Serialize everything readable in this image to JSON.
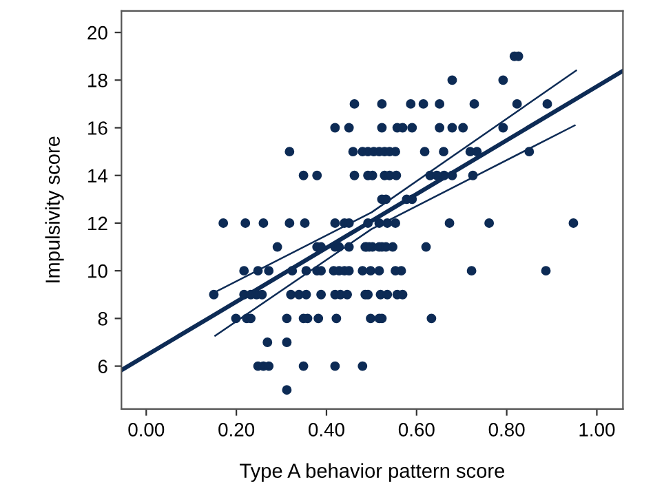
{
  "chart_data": {
    "type": "scatter",
    "xlabel": "Type A behavior pattern score",
    "ylabel": "Impulsivity score",
    "xlim": [
      -0.055,
      1.058
    ],
    "ylim": [
      4.2,
      20.9
    ],
    "xticks": [
      {
        "value": 0,
        "label": "0.00"
      },
      {
        "value": 0.2,
        "label": "0.20"
      },
      {
        "value": 0.4,
        "label": "0.40"
      },
      {
        "value": 0.6,
        "label": "0.60"
      },
      {
        "value": 0.8,
        "label": "0.80"
      },
      {
        "value": 1,
        "label": "1.00"
      }
    ],
    "yticks": [
      6,
      8,
      10,
      12,
      14,
      16,
      18,
      20
    ],
    "grid": false,
    "series": [
      {
        "marker": "circle",
        "color": "#0d2b55",
        "x": [
          0.817,
          0.826,
          0.679,
          0.792,
          0.462,
          0.523,
          0.587,
          0.615,
          0.651,
          0.728,
          0.823,
          0.89,
          0.419,
          0.45,
          0.523,
          0.557,
          0.569,
          0.59,
          0.651,
          0.679,
          0.703,
          0.792,
          0.318,
          0.459,
          0.48,
          0.492,
          0.505,
          0.517,
          0.529,
          0.54,
          0.553,
          0.618,
          0.66,
          0.719,
          0.734,
          0.85,
          0.349,
          0.379,
          0.462,
          0.492,
          0.502,
          0.529,
          0.54,
          0.555,
          0.63,
          0.645,
          0.661,
          0.679,
          0.725,
          0.523,
          0.532,
          0.578,
          0.59,
          0.171,
          0.22,
          0.26,
          0.318,
          0.352,
          0.419,
          0.44,
          0.45,
          0.492,
          0.517,
          0.535,
          0.553,
          0.673,
          0.761,
          0.948,
          0.291,
          0.379,
          0.388,
          0.419,
          0.428,
          0.45,
          0.489,
          0.502,
          0.523,
          0.486,
          0.495,
          0.517,
          0.532,
          0.547,
          0.621,
          0.217,
          0.248,
          0.272,
          0.324,
          0.355,
          0.379,
          0.388,
          0.416,
          0.428,
          0.44,
          0.45,
          0.48,
          0.498,
          0.517,
          0.553,
          0.566,
          0.722,
          0.887,
          0.15,
          0.217,
          0.232,
          0.245,
          0.257,
          0.321,
          0.339,
          0.355,
          0.388,
          0.419,
          0.431,
          0.446,
          0.492,
          0.52,
          0.486,
          0.535,
          0.557,
          0.569,
          0.199,
          0.223,
          0.232,
          0.312,
          0.349,
          0.358,
          0.382,
          0.422,
          0.498,
          0.517,
          0.523,
          0.633,
          0.269,
          0.312,
          0.248,
          0.26,
          0.272,
          0.349,
          0.419,
          0.48,
          0.312
        ],
        "values": [
          19,
          19,
          18,
          18,
          17,
          17,
          17,
          17,
          17,
          17,
          17,
          17,
          16,
          16,
          16,
          16,
          16,
          16,
          16,
          16,
          16,
          16,
          15,
          15,
          15,
          15,
          15,
          15,
          15,
          15,
          15,
          15,
          15,
          15,
          15,
          15,
          14,
          14,
          14,
          14,
          14,
          14,
          14,
          14,
          14,
          14,
          14,
          14,
          14,
          13,
          13,
          13,
          13,
          12,
          12,
          12,
          12,
          12,
          12,
          12,
          12,
          12,
          12,
          12,
          12,
          12,
          12,
          12,
          11,
          11,
          11,
          11,
          11,
          11,
          11,
          11,
          11,
          11,
          11,
          11,
          11,
          11,
          11,
          10,
          10,
          10,
          10,
          10,
          10,
          10,
          10,
          10,
          10,
          10,
          10,
          10,
          10,
          10,
          10,
          10,
          10,
          9,
          9,
          9,
          9,
          9,
          9,
          9,
          9,
          9,
          9,
          9,
          9,
          9,
          9,
          9,
          9,
          9,
          9,
          8,
          8,
          8,
          8,
          8,
          8,
          8,
          8,
          8,
          8,
          8,
          8,
          7,
          7,
          6,
          6,
          6,
          6,
          6,
          6,
          5
        ]
      },
      {
        "type": "line",
        "marker": "none",
        "color": "#0d2b55",
        "x": [
          -0.055,
          0.15,
          0.5,
          0.95,
          1.058
        ],
        "values": [
          5.83,
          8.14,
          12.09,
          17.17,
          18.39
        ]
      },
      {
        "type": "line",
        "marker": "none",
        "line_style": "solid",
        "color": "#0d2b55",
        "x": [
          0.147,
          0.5,
          0.954
        ],
        "values": [
          9.05,
          12.45,
          18.4
        ]
      },
      {
        "type": "line",
        "marker": "none",
        "line_style": "solid",
        "color": "#0d2b55",
        "x": [
          0.153,
          0.5,
          0.951
        ],
        "values": [
          7.27,
          11.75,
          16.1
        ]
      }
    ]
  }
}
